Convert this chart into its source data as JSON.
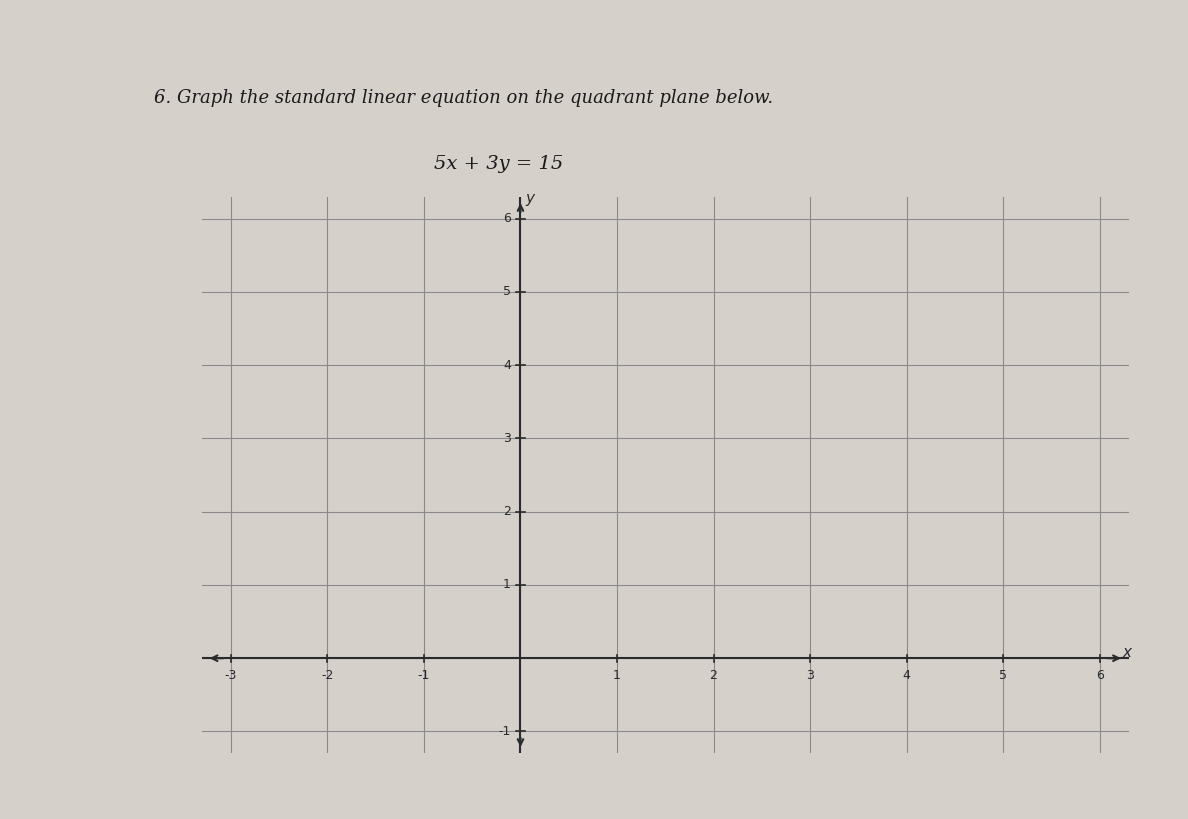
{
  "title_line1": "6. Graph the standard linear equation on the quadrant plane below.",
  "title_line2": "5x + 3y = 15",
  "background_color": "#d6d0cb",
  "grid_color": "#8a8a8a",
  "axis_color": "#2a2a2a",
  "x_min": -3,
  "x_max": 6,
  "y_min": -1,
  "y_max": 6,
  "x_label": "x",
  "y_label": "y",
  "tick_fontsize": 9,
  "label_fontsize": 11,
  "title_fontsize1": 13,
  "title_fontsize2": 14
}
